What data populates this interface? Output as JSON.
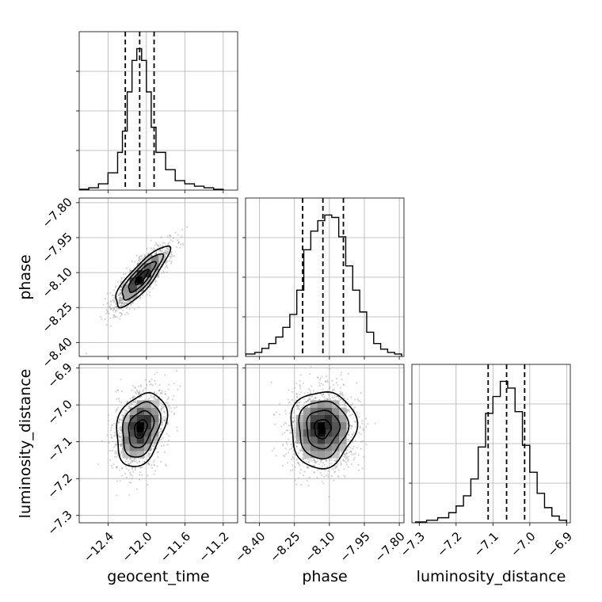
{
  "chart_data": {
    "type": "corner",
    "parameters": [
      "geocent_time",
      "phase",
      "luminosity_distance"
    ],
    "xlabels": [
      "geocent_time",
      "phase",
      "luminosity_distance"
    ],
    "ylabels": [
      "",
      "phase",
      "luminosity_distance"
    ],
    "grid": true,
    "ranges": {
      "geocent_time": [
        -12.7,
        -11.05
      ],
      "phase": [
        -8.46,
        -7.78
      ],
      "luminosity_distance": [
        -7.32,
        -6.89
      ]
    },
    "ticks": {
      "geocent_time": [
        -12.4,
        -12.0,
        -11.6,
        -11.2
      ],
      "phase": [
        -8.4,
        -8.25,
        -8.1,
        -7.95,
        -7.8
      ],
      "luminosity_distance": [
        -7.3,
        -7.2,
        -7.1,
        -7.0,
        -6.9
      ]
    },
    "tick_labels": {
      "geocent_time": [
        "−12.4",
        "−12.0",
        "−11.6",
        "−11.2"
      ],
      "phase": [
        "−8.40",
        "−8.25",
        "−8.10",
        "−7.95",
        "−7.80"
      ],
      "luminosity_distance": [
        "−7.3",
        "−7.2",
        "−7.1",
        "−7.0",
        "−6.9"
      ]
    },
    "quantiles": {
      "geocent_time": [
        -12.22,
        -12.07,
        -11.92
      ],
      "phase": [
        -8.215,
        -8.128,
        -8.04
      ],
      "luminosity_distance": [
        -7.113,
        -7.063,
        -7.014
      ]
    },
    "histograms": [
      {
        "parameter": "geocent_time",
        "bin_edges": [
          -12.7,
          -12.6,
          -12.5,
          -12.4,
          -12.3,
          -12.25,
          -12.2,
          -12.15,
          -12.1,
          -12.05,
          -12.0,
          -11.95,
          -11.9,
          -11.8,
          -11.7,
          -11.6,
          -11.5,
          -11.4,
          -11.3,
          -11.2
        ],
        "counts": [
          1,
          3,
          8,
          22,
          48,
          75,
          125,
          165,
          180,
          165,
          125,
          80,
          48,
          26,
          12,
          8,
          5,
          3,
          1
        ]
      },
      {
        "parameter": "phase",
        "bin_edges": [
          -8.46,
          -8.42,
          -8.39,
          -8.36,
          -8.33,
          -8.3,
          -8.27,
          -8.24,
          -8.21,
          -8.18,
          -8.15,
          -8.12,
          -8.09,
          -8.06,
          -8.03,
          -8.0,
          -7.97,
          -7.94,
          -7.91,
          -7.88,
          -7.85,
          -7.82,
          -7.79
        ],
        "counts": [
          3,
          5,
          10,
          16,
          24,
          36,
          52,
          82,
          132,
          155,
          168,
          175,
          172,
          148,
          112,
          82,
          55,
          30,
          16,
          9,
          5,
          3
        ]
      },
      {
        "parameter": "luminosity_distance",
        "bin_edges": [
          -7.31,
          -7.28,
          -7.25,
          -7.22,
          -7.2,
          -7.18,
          -7.16,
          -7.14,
          -7.12,
          -7.1,
          -7.08,
          -7.06,
          -7.04,
          -7.02,
          -7.0,
          -6.98,
          -6.96,
          -6.94,
          -6.92,
          -6.9
        ],
        "counts": [
          1,
          3,
          6,
          12,
          20,
          32,
          52,
          90,
          130,
          150,
          168,
          160,
          132,
          92,
          60,
          35,
          18,
          8,
          3
        ]
      }
    ],
    "scatter_2d": [
      {
        "x": "geocent_time",
        "y": "phase",
        "mean": [
          -12.05,
          -8.12
        ],
        "std": [
          0.14,
          0.065
        ],
        "correlation": 0.85,
        "peak": [
          -12.08,
          -8.13
        ]
      },
      {
        "x": "geocent_time",
        "y": "luminosity_distance",
        "mean": [
          -12.06,
          -7.065
        ],
        "std": [
          0.13,
          0.05
        ],
        "correlation": 0.3,
        "peak": [
          -12.07,
          -7.065
        ]
      },
      {
        "x": "phase",
        "y": "luminosity_distance",
        "mean": [
          -8.13,
          -7.065
        ],
        "std": [
          0.07,
          0.052
        ],
        "correlation": 0.05,
        "peak": [
          -8.13,
          -7.07
        ]
      }
    ],
    "contour_levels_sigma": [
      0.5,
      1.0,
      1.5,
      2.0
    ]
  }
}
